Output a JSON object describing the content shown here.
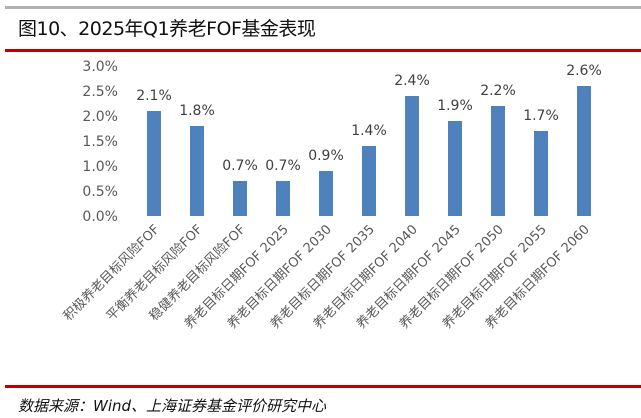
{
  "title": "图10、2025年Q1养老FOF基金表现",
  "source": "数据来源：Wind、上海证券基金评价研究中心",
  "chart_data": {
    "type": "bar",
    "categories": [
      "积极养老目标风险FOF",
      "平衡养老目标风险FOF",
      "稳健养老目标风险FOF",
      "养老目标日期FOF 2025",
      "养老目标日期FOF 2030",
      "养老目标日期FOF 2035",
      "养老目标日期FOF 2040",
      "养老目标日期FOF 2045",
      "养老目标日期FOF 2050",
      "养老目标日期FOF 2055",
      "养老目标日期FOF 2060"
    ],
    "values": [
      2.1,
      1.8,
      0.7,
      0.7,
      0.9,
      1.4,
      2.4,
      1.9,
      2.2,
      1.7,
      2.6
    ],
    "data_labels": [
      "2.1%",
      "1.8%",
      "0.7%",
      "0.7%",
      "0.9%",
      "1.4%",
      "2.4%",
      "1.9%",
      "2.2%",
      "1.7%",
      "2.6%"
    ],
    "yticks": [
      "0.0%",
      "0.5%",
      "1.0%",
      "1.5%",
      "2.0%",
      "2.5%",
      "3.0%"
    ],
    "ylim": [
      0,
      3.0
    ],
    "grid": false,
    "bar_color": "#4f81bd"
  }
}
